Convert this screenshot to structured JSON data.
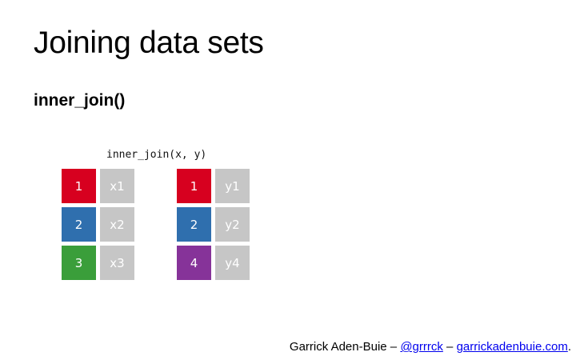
{
  "slide": {
    "title": "Joining data sets",
    "subtitle": "inner_join()"
  },
  "diagram": {
    "code": "inner_join(x, y)",
    "colors": {
      "id1": "#d7001f",
      "id2": "#2f6fae",
      "id3": "#3a9e3a",
      "id4": "#863399",
      "value": "#c6c6c6"
    },
    "x_table": [
      {
        "key": "1",
        "val": "x1",
        "color": "#d7001f"
      },
      {
        "key": "2",
        "val": "x2",
        "color": "#2f6fae"
      },
      {
        "key": "3",
        "val": "x3",
        "color": "#3a9e3a"
      }
    ],
    "y_table": [
      {
        "key": "1",
        "val": "y1",
        "color": "#d7001f"
      },
      {
        "key": "2",
        "val": "y2",
        "color": "#2f6fae"
      },
      {
        "key": "4",
        "val": "y4",
        "color": "#863399"
      }
    ]
  },
  "footer": {
    "author": "Garrick Aden-Buie",
    "sep1": " – ",
    "handle": "@grrrck",
    "sep2": " – ",
    "site": "garrickadenbuie.com",
    "end": "."
  }
}
